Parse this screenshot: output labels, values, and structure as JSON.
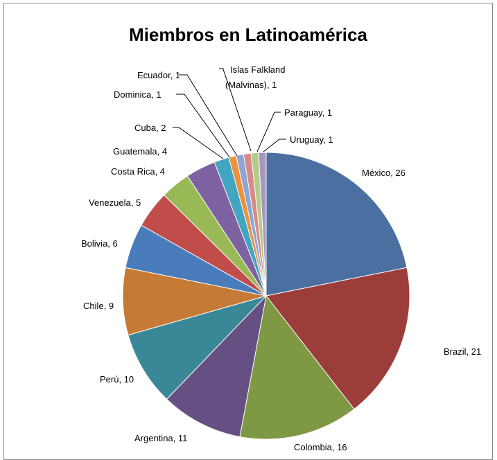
{
  "chart_data": {
    "type": "pie",
    "title": "Miembros en Latinoamérica",
    "legend": "none",
    "slices": [
      {
        "label": "México",
        "value": 26,
        "color": "#4A6FA0",
        "text": "México, 26"
      },
      {
        "label": "Brazil",
        "value": 21,
        "color": "#9C3D3A",
        "text": "Brazil, 21"
      },
      {
        "label": "Colombia",
        "value": 16,
        "color": "#7E9843",
        "text": "Colombia, 16"
      },
      {
        "label": "Argentina",
        "value": 11,
        "color": "#664F83",
        "text": "Argentina, 11"
      },
      {
        "label": "Perú",
        "value": 10,
        "color": "#3A8797",
        "text": "Perú, 10"
      },
      {
        "label": "Chile",
        "value": 9,
        "color": "#C57A35",
        "text": "Chile, 9"
      },
      {
        "label": "Bolivia",
        "value": 6,
        "color": "#4A7BBB",
        "text": "Bolivia, 6"
      },
      {
        "label": "Venezuela",
        "value": 5,
        "color": "#C04D4A",
        "text": "Venezuela, 5"
      },
      {
        "label": "Costa Rica",
        "value": 4,
        "color": "#99B956",
        "text": "Costa Rica, 4"
      },
      {
        "label": "Guatemala",
        "value": 4,
        "color": "#7D61A0",
        "text": "Guatemala, 4"
      },
      {
        "label": "Cuba",
        "value": 2,
        "color": "#42A5C1",
        "text": "Cuba, 2"
      },
      {
        "label": "Dominica",
        "value": 1,
        "color": "#EE913D",
        "text": "Dominica, 1"
      },
      {
        "label": "Ecuador",
        "value": 1,
        "color": "#8EA6D4",
        "text": "Ecuador, 1"
      },
      {
        "label": "Islas Falkland (Malvinas)",
        "value": 1,
        "color": "#D78A88",
        "text_lines": [
          "Islas Falkland",
          "(Malvinas), 1"
        ]
      },
      {
        "label": "Paraguay",
        "value": 1,
        "color": "#B4CC89",
        "text": "Paraguay, 1"
      },
      {
        "label": "Uruguay",
        "value": 1,
        "color": "#A895C0",
        "text": "Uruguay, 1"
      }
    ]
  }
}
